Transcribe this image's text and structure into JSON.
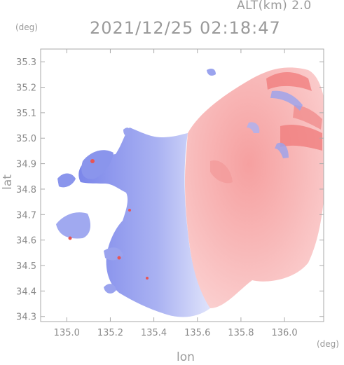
{
  "header": {
    "altitude": "ALT(km) 2.0",
    "datetime": "2021/12/25 02:18:47"
  },
  "colors": {
    "approaching": "#6f7ff0",
    "receding": "#f06e6e",
    "axis": "#aaaaaa",
    "text": "#9a9a9a"
  },
  "chart_data": {
    "type": "heatmap",
    "title": "2021/12/25 02:18:47",
    "subtitle": "ALT(km) 2.0",
    "xlabel": "lon",
    "ylabel": "lat",
    "x_unit": "(deg)",
    "y_unit": "(deg)",
    "xlim": [
      134.88,
      136.18
    ],
    "ylim": [
      34.28,
      35.35
    ],
    "xticks": [
      135.0,
      135.2,
      135.4,
      135.6,
      135.8,
      136.0
    ],
    "yticks": [
      34.3,
      34.4,
      34.5,
      34.6,
      34.7,
      34.8,
      34.9,
      35.0,
      35.1,
      35.2,
      35.3
    ],
    "xtick_labels": [
      "135.0",
      "135.2",
      "135.4",
      "135.6",
      "135.8",
      "136.0"
    ],
    "ytick_labels": [
      "34.3",
      "34.4",
      "34.5",
      "34.6",
      "34.7",
      "34.8",
      "34.9",
      "35.0",
      "35.1",
      "35.2",
      "35.3"
    ],
    "grid": false,
    "description_values": {
      "approaching_region_lon_range": [
        134.95,
        135.55
      ],
      "receding_region_lon_range": [
        135.55,
        136.18
      ]
    }
  }
}
